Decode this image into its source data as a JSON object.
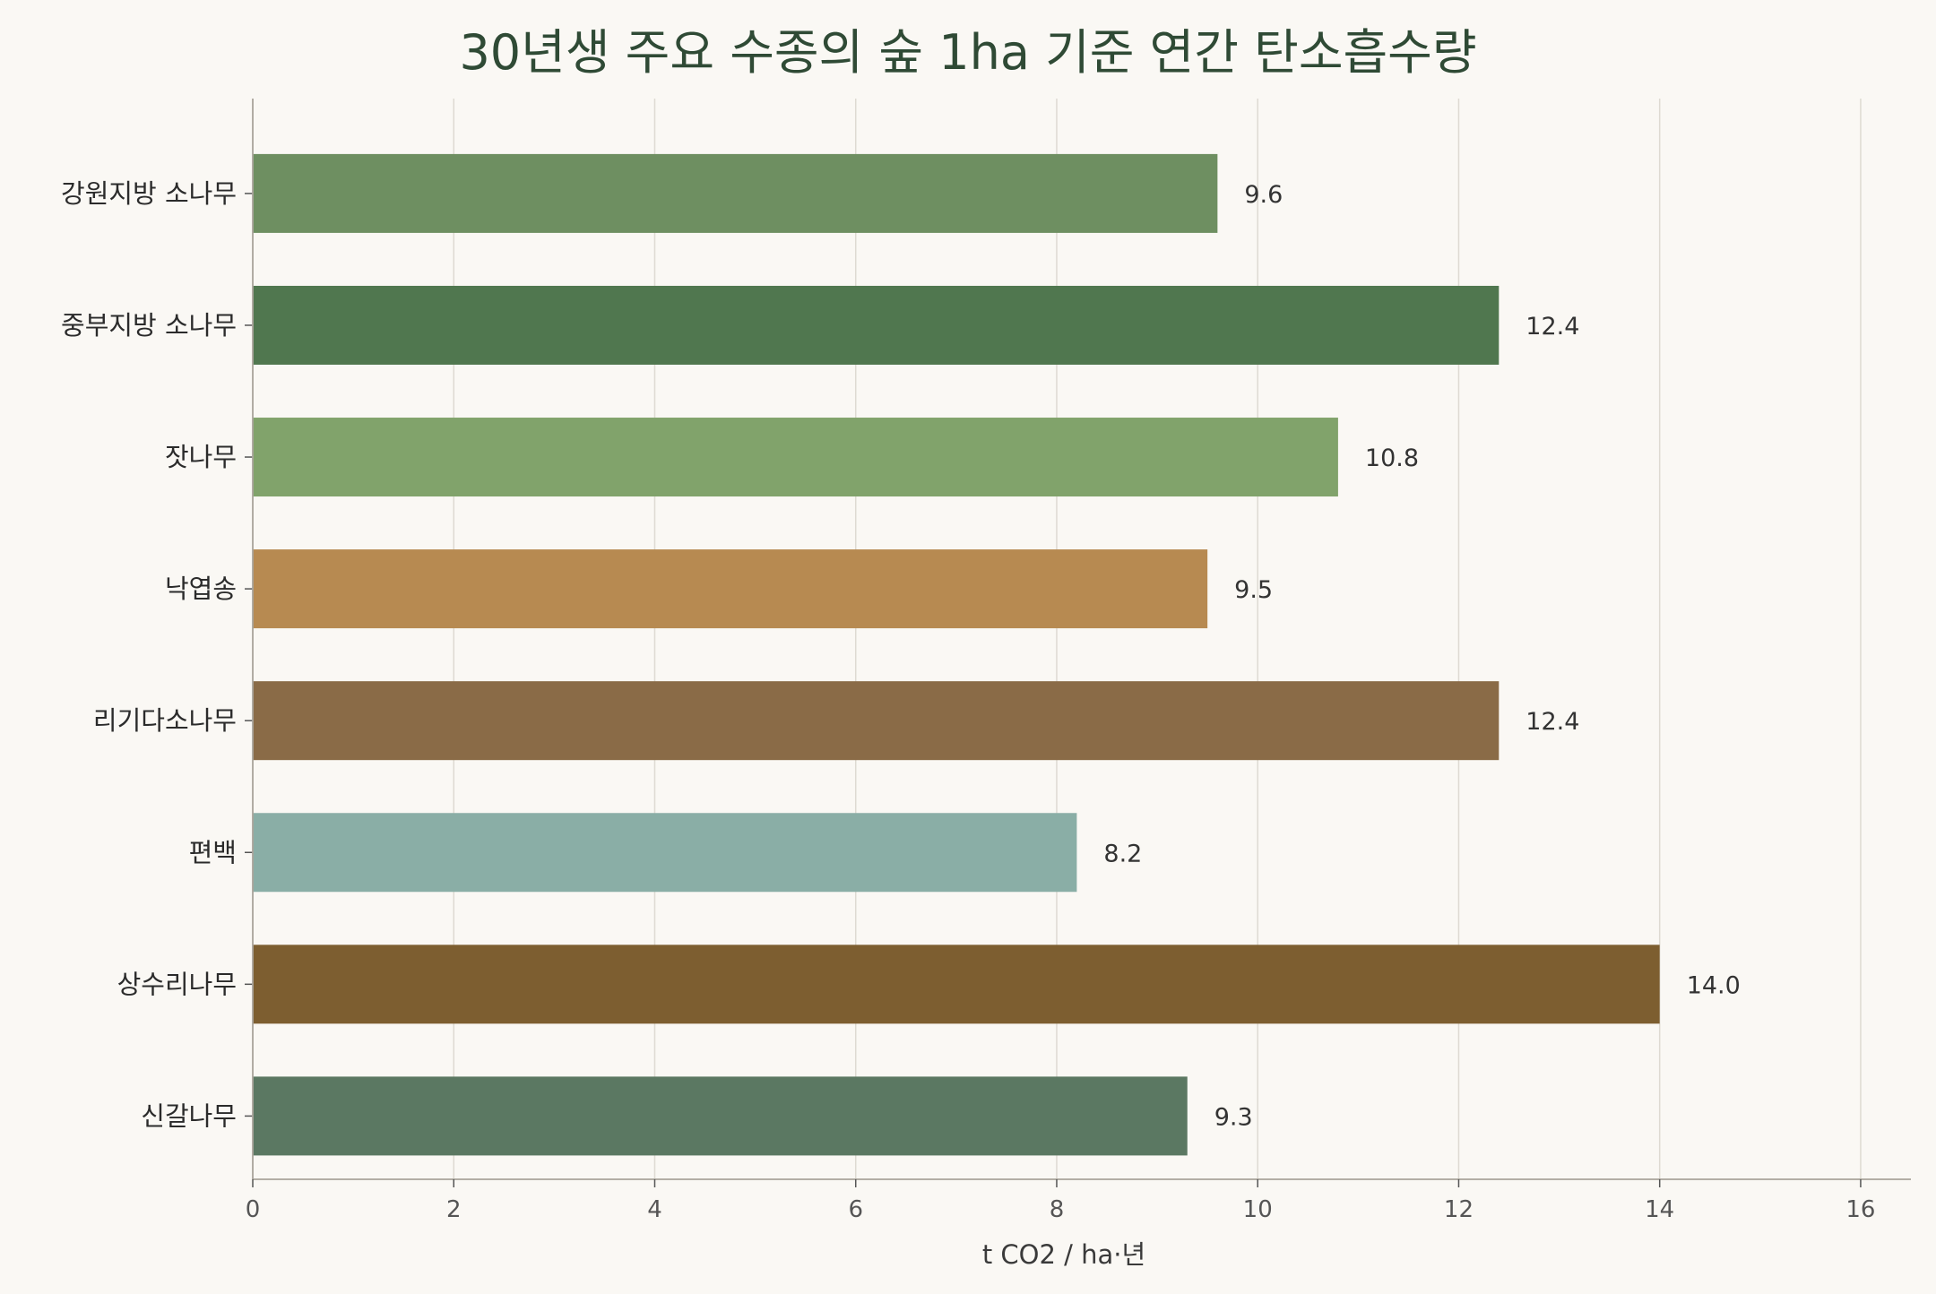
{
  "chart_data": {
    "type": "bar",
    "orientation": "horizontal",
    "title": "30년생 주요 수종의 숲 1ha 기준 연간 탄소흡수량",
    "xlabel": "t CO2 / ha·년",
    "ylabel": "",
    "xlim": [
      0,
      16.5
    ],
    "xticks": [
      0,
      2,
      4,
      6,
      8,
      10,
      12,
      14,
      16
    ],
    "grid": "vertical",
    "categories": [
      "강원지방 소나무",
      "중부지방 소나무",
      "잣나무",
      "낙엽송",
      "리기다소나무",
      "편백",
      "상수리나무",
      "신갈나무"
    ],
    "values": [
      9.6,
      12.4,
      10.8,
      9.5,
      12.4,
      8.2,
      14.0,
      9.3
    ],
    "value_labels": [
      "9.6",
      "12.4",
      "10.8",
      "9.5",
      "12.4",
      "8.2",
      "14.0",
      "9.3"
    ],
    "colors": [
      "#6e8f61",
      "#50774f",
      "#81a36b",
      "#b78a51",
      "#8a6b47",
      "#8aaea6",
      "#7d5e30",
      "#5b7862"
    ]
  }
}
